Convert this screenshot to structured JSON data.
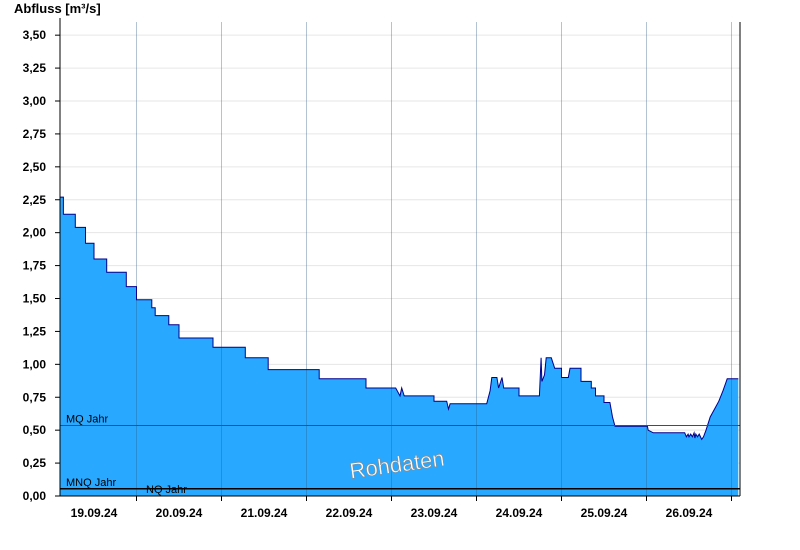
{
  "chart_data": {
    "type": "area",
    "title": "",
    "ylabel": "Abfluss [m³/s]",
    "xlabel": "",
    "ylim": [
      0,
      3.6
    ],
    "yticks": [
      0,
      0.25,
      0.5,
      0.75,
      1.0,
      1.25,
      1.5,
      1.75,
      2.0,
      2.25,
      2.5,
      2.75,
      3.0,
      3.25,
      3.5
    ],
    "ytick_labels": [
      "0,00",
      "0,25",
      "0,50",
      "0,75",
      "1,00",
      "1,25",
      "1,50",
      "1,75",
      "2,00",
      "2,25",
      "2,50",
      "2,75",
      "3,00",
      "3,25",
      "3,50"
    ],
    "xlim_days": [
      18.6,
      26.6
    ],
    "day_boundaries": [
      19.5,
      20.5,
      21.5,
      22.5,
      23.5,
      24.5,
      25.5,
      26.5
    ],
    "xtick_labels": [
      "19.09.24",
      "20.09.24",
      "21.09.24",
      "22.09.24",
      "23.09.24",
      "24.09.24",
      "25.09.24",
      "26.09.24"
    ],
    "grid": true,
    "fill_color": "#29a8ff",
    "line_color": "#00008b",
    "series": [
      {
        "x": [
          18.6,
          18.64,
          18.64,
          18.78,
          18.78,
          18.9,
          18.9,
          19.0,
          19.0,
          19.15,
          19.15,
          19.38,
          19.38,
          19.5,
          19.5,
          19.68,
          19.68,
          19.72,
          19.72,
          19.88,
          19.88,
          20.0,
          20.0,
          20.4,
          20.4,
          20.78,
          20.78,
          21.05,
          21.05,
          21.65,
          21.65,
          22.2,
          22.2,
          22.55,
          22.55,
          22.6,
          22.62,
          22.65,
          22.72,
          23.0,
          23.0,
          23.15,
          23.17,
          23.19,
          23.62,
          23.66,
          23.68,
          23.74,
          23.76,
          23.8,
          23.82,
          24.0,
          24.0,
          24.24,
          24.26,
          24.27,
          24.3,
          24.32,
          24.38,
          24.42,
          24.5,
          24.5,
          24.58,
          24.6,
          24.73,
          24.73,
          24.85,
          24.85,
          24.9,
          24.9,
          25.0,
          25.0,
          25.07,
          25.1,
          25.13,
          25.5,
          25.51,
          25.52,
          25.58,
          25.95,
          25.97,
          25.99,
          26.0,
          26.02,
          26.04,
          26.06,
          26.07,
          26.08,
          26.1,
          26.12,
          26.15,
          26.17,
          26.2,
          26.25,
          26.3,
          26.35,
          26.4,
          26.45,
          26.5,
          26.58
        ],
        "values": [
          2.27,
          2.27,
          2.14,
          2.14,
          2.04,
          2.04,
          1.92,
          1.92,
          1.8,
          1.8,
          1.7,
          1.7,
          1.59,
          1.59,
          1.49,
          1.49,
          1.43,
          1.43,
          1.37,
          1.37,
          1.3,
          1.3,
          1.2,
          1.2,
          1.13,
          1.13,
          1.05,
          1.05,
          0.96,
          0.96,
          0.89,
          0.89,
          0.82,
          0.82,
          0.82,
          0.76,
          0.82,
          0.76,
          0.76,
          0.76,
          0.72,
          0.72,
          0.66,
          0.7,
          0.7,
          0.8,
          0.9,
          0.9,
          0.82,
          0.9,
          0.82,
          0.82,
          0.76,
          0.76,
          1.05,
          0.87,
          0.92,
          1.05,
          1.05,
          0.97,
          0.97,
          0.9,
          0.9,
          0.97,
          0.97,
          0.87,
          0.87,
          0.82,
          0.82,
          0.76,
          0.76,
          0.71,
          0.71,
          0.6,
          0.53,
          0.53,
          0.53,
          0.5,
          0.48,
          0.48,
          0.45,
          0.47,
          0.45,
          0.47,
          0.45,
          0.48,
          0.44,
          0.47,
          0.45,
          0.47,
          0.43,
          0.45,
          0.5,
          0.6,
          0.66,
          0.72,
          0.8,
          0.89,
          0.89,
          0.89
        ]
      }
    ],
    "reference_lines": [
      {
        "label": "MQ Jahr",
        "value": 0.535,
        "color": "#008000"
      },
      {
        "label": "MNQ Jahr",
        "value": 0.055,
        "color": "#000000"
      },
      {
        "label": "NQ Jahr",
        "value": 0.055,
        "color": "#000000"
      }
    ],
    "watermark": "Rohdaten"
  }
}
